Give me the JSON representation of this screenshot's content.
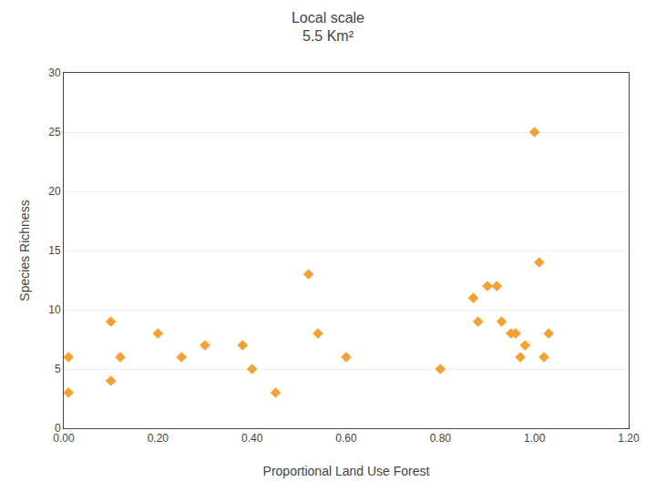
{
  "chart_data": {
    "type": "scatter",
    "title": "Local scale\n5.5 Km²",
    "x_label": "Proportional Land Use Forest",
    "y_label": "Species Richness",
    "x": [
      0.01,
      0.01,
      0.1,
      0.1,
      0.12,
      0.2,
      0.25,
      0.3,
      0.38,
      0.4,
      0.45,
      0.52,
      0.54,
      0.6,
      0.8,
      0.87,
      0.88,
      0.9,
      0.92,
      0.93,
      0.95,
      0.96,
      0.97,
      0.98,
      1.0,
      1.01,
      1.02,
      1.03
    ],
    "values": [
      6,
      3,
      9,
      4,
      6,
      8,
      6,
      7,
      7,
      5,
      3,
      13,
      8,
      6,
      5,
      11,
      9,
      12,
      12,
      9,
      8,
      8,
      6,
      7,
      25,
      14,
      6,
      8
    ],
    "color": "#f5a033",
    "marker": "diamond",
    "xlim": [
      0.0,
      1.2
    ],
    "ylim": [
      0,
      30
    ],
    "xticks": [
      {
        "value": 0.0,
        "label": "0.00"
      },
      {
        "value": 0.2,
        "label": "0.20"
      },
      {
        "value": 0.4,
        "label": "0.40"
      },
      {
        "value": 0.6,
        "label": "0.60"
      },
      {
        "value": 0.8,
        "label": "0.80"
      },
      {
        "value": 1.0,
        "label": "1.00"
      },
      {
        "value": 1.2,
        "label": "1.20"
      }
    ],
    "yticks": [
      0,
      5,
      10,
      15,
      20,
      25,
      30
    ],
    "grid": true
  }
}
